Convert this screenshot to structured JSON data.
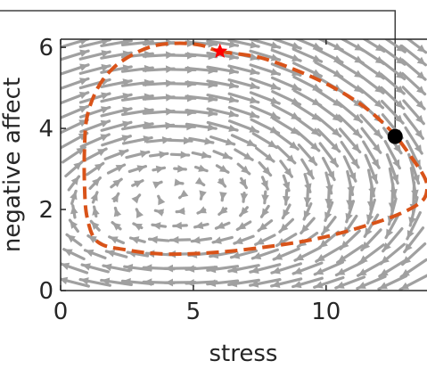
{
  "chart_data": {
    "type": "line",
    "xlabel": "stress",
    "ylabel": "negative affect",
    "xlim": [
      0,
      13.8
    ],
    "ylim": [
      0,
      6.2
    ],
    "xticks": [
      0,
      5,
      10
    ],
    "yticks": [
      0,
      2,
      4,
      6
    ],
    "grid": false,
    "legend": "none",
    "vector_field": {
      "color": "#a0a0a0",
      "description_free": true,
      "x_grid": [
        0.5,
        1.3,
        2.1,
        2.9,
        3.7,
        4.5,
        5.3,
        6.1,
        6.9,
        7.7,
        8.5,
        9.3,
        10.1,
        10.9,
        11.7,
        12.5,
        13.3
      ],
      "y_grid": [
        0.2,
        0.55,
        0.9,
        1.25,
        1.6,
        1.95,
        2.3,
        2.65,
        3.0,
        3.35,
        3.7,
        4.05,
        4.4,
        4.75,
        5.1,
        5.45,
        5.8,
        6.1
      ]
    },
    "trajectory": {
      "color": "#d95319",
      "style": "dashed",
      "x": [
        6.0,
        7.5,
        9.0,
        10.3,
        11.5,
        12.5,
        13.2,
        13.7,
        13.8,
        13.6,
        12.8,
        11.5,
        9.8,
        8.0,
        6.0,
        4.0,
        2.5,
        1.4,
        1.0,
        0.9,
        0.9,
        1.0,
        1.4,
        2.0,
        2.8,
        3.6,
        4.5,
        5.3,
        6.0
      ],
      "y": [
        5.9,
        5.75,
        5.4,
        5.0,
        4.5,
        3.9,
        3.3,
        2.8,
        2.5,
        2.2,
        1.9,
        1.6,
        1.3,
        1.1,
        0.95,
        0.9,
        1.0,
        1.2,
        1.8,
        2.6,
        3.5,
        4.3,
        5.0,
        5.5,
        5.85,
        6.05,
        6.1,
        6.05,
        5.9
      ]
    },
    "markers": [
      {
        "shape": "star",
        "color": "#ff0000",
        "x": 6.0,
        "y": 5.9
      },
      {
        "shape": "circle",
        "color": "#000000",
        "x": 12.6,
        "y": 3.8
      }
    ],
    "callout_line": {
      "color": "#404040",
      "x": 12.6,
      "y": 3.8
    }
  }
}
